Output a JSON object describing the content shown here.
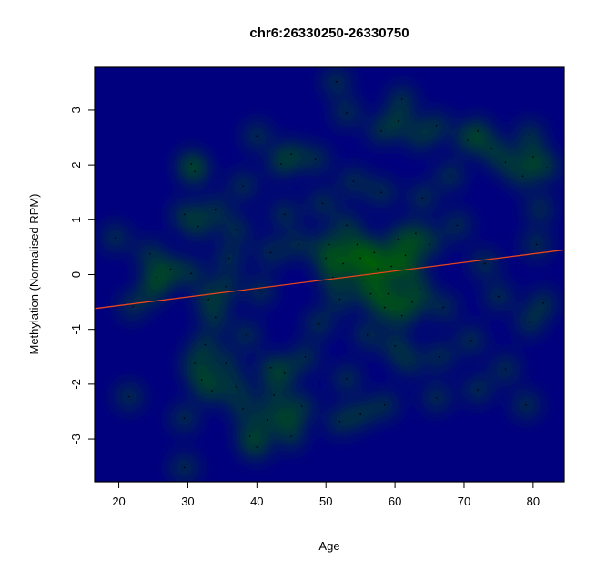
{
  "chart_data": {
    "type": "heatmap",
    "subtype": "smoothed-density-scatter",
    "title": "chr6:26330250-26330750",
    "xlabel": "Age",
    "ylabel": "Methylation (Normalised RPM)",
    "xlim": [
      16.5,
      84.5
    ],
    "ylim": [
      -3.78,
      3.78
    ],
    "x_ticks": [
      20,
      30,
      40,
      50,
      60,
      70,
      80
    ],
    "y_ticks": [
      -3,
      -2,
      -1,
      0,
      1,
      2,
      3
    ],
    "grid": false,
    "legend": "none",
    "colors": {
      "background": "#00007f",
      "regression_line": "#e8451c",
      "point": "#000000",
      "ramp": [
        "#00007f",
        "#006400",
        "#6fd000",
        "#ffff00",
        "#ffb000",
        "#ff6a00",
        "#ff0000",
        "#b00000"
      ]
    },
    "regression_line": {
      "x": [
        16.5,
        84.5
      ],
      "y": [
        -0.62,
        0.45
      ]
    },
    "points": [
      {
        "x": 19.5,
        "y": 0.67
      },
      {
        "x": 21.5,
        "y": -2.23
      },
      {
        "x": 29.5,
        "y": -2.62
      },
      {
        "x": 29.5,
        "y": -3.52
      },
      {
        "x": 30.5,
        "y": 2.02
      },
      {
        "x": 31.0,
        "y": 1.88
      },
      {
        "x": 29.5,
        "y": 1.1
      },
      {
        "x": 31.5,
        "y": 0.88
      },
      {
        "x": 34.0,
        "y": 1.18
      },
      {
        "x": 38.0,
        "y": 1.62
      },
      {
        "x": 40.0,
        "y": 2.53
      },
      {
        "x": 43.5,
        "y": 2.02
      },
      {
        "x": 51.5,
        "y": 3.52
      },
      {
        "x": 53.0,
        "y": 2.95
      },
      {
        "x": 61.0,
        "y": 3.2
      },
      {
        "x": 60.5,
        "y": 2.8
      },
      {
        "x": 66.0,
        "y": 2.72
      },
      {
        "x": 72.0,
        "y": 2.62
      },
      {
        "x": 79.5,
        "y": 2.55
      },
      {
        "x": 82.0,
        "y": 1.95
      },
      {
        "x": 80.0,
        "y": 2.15
      },
      {
        "x": 24.5,
        "y": 0.38
      },
      {
        "x": 25.5,
        "y": -0.05
      },
      {
        "x": 25.0,
        "y": -0.3
      },
      {
        "x": 27.5,
        "y": 0.1
      },
      {
        "x": 30.5,
        "y": 0.02
      },
      {
        "x": 33.0,
        "y": -0.45
      },
      {
        "x": 34.0,
        "y": -0.78
      },
      {
        "x": 32.5,
        "y": -1.28
      },
      {
        "x": 31.0,
        "y": -1.62
      },
      {
        "x": 32.0,
        "y": -1.92
      },
      {
        "x": 33.5,
        "y": -2.12
      },
      {
        "x": 35.5,
        "y": -1.62
      },
      {
        "x": 37.0,
        "y": -2.05
      },
      {
        "x": 38.0,
        "y": -2.45
      },
      {
        "x": 39.0,
        "y": -2.95
      },
      {
        "x": 40.0,
        "y": -3.15
      },
      {
        "x": 41.5,
        "y": -2.65
      },
      {
        "x": 42.5,
        "y": -2.2
      },
      {
        "x": 44.5,
        "y": -2.62
      },
      {
        "x": 45.0,
        "y": -2.95
      },
      {
        "x": 46.5,
        "y": -2.4
      },
      {
        "x": 42.0,
        "y": -1.7
      },
      {
        "x": 44.0,
        "y": -1.8
      },
      {
        "x": 52.0,
        "y": -2.68
      },
      {
        "x": 55.0,
        "y": -2.55
      },
      {
        "x": 58.5,
        "y": -2.38
      },
      {
        "x": 66.0,
        "y": -2.25
      },
      {
        "x": 72.0,
        "y": -2.1
      },
      {
        "x": 79.0,
        "y": -2.38
      },
      {
        "x": 76.0,
        "y": -1.72
      },
      {
        "x": 79.5,
        "y": -0.88
      },
      {
        "x": 81.5,
        "y": -0.52
      },
      {
        "x": 80.5,
        "y": 0.55
      },
      {
        "x": 81.0,
        "y": 1.2
      },
      {
        "x": 78.5,
        "y": 1.8
      },
      {
        "x": 76.0,
        "y": 2.05
      },
      {
        "x": 74.0,
        "y": 2.3
      },
      {
        "x": 70.5,
        "y": 2.45
      },
      {
        "x": 58.0,
        "y": 2.62
      },
      {
        "x": 63.5,
        "y": 2.5
      },
      {
        "x": 48.5,
        "y": 2.1
      },
      {
        "x": 45.0,
        "y": 2.2
      },
      {
        "x": 37.0,
        "y": 0.82
      },
      {
        "x": 22.0,
        "y": -0.58
      },
      {
        "x": 35.5,
        "y": -0.22
      },
      {
        "x": 46.0,
        "y": 0.55
      },
      {
        "x": 50.0,
        "y": 0.3
      },
      {
        "x": 53.0,
        "y": 0.9
      },
      {
        "x": 55.5,
        "y": -0.1
      },
      {
        "x": 57.0,
        "y": 0.4
      },
      {
        "x": 59.0,
        "y": -0.35
      },
      {
        "x": 60.5,
        "y": 0.65
      },
      {
        "x": 62.0,
        "y": 0.1
      },
      {
        "x": 63.5,
        "y": -0.25
      },
      {
        "x": 52.0,
        "y": -0.45
      },
      {
        "x": 49.0,
        "y": -0.9
      },
      {
        "x": 56.0,
        "y": -1.1
      },
      {
        "x": 61.0,
        "y": -0.75
      },
      {
        "x": 65.0,
        "y": 0.55
      },
      {
        "x": 67.0,
        "y": -0.6
      },
      {
        "x": 69.0,
        "y": 0.9
      },
      {
        "x": 71.0,
        "y": -1.2
      },
      {
        "x": 47.0,
        "y": -1.5
      },
      {
        "x": 44.0,
        "y": 1.1
      },
      {
        "x": 40.5,
        "y": -0.3
      },
      {
        "x": 42.0,
        "y": 0.4
      },
      {
        "x": 58.0,
        "y": 1.5
      },
      {
        "x": 54.0,
        "y": 1.7
      },
      {
        "x": 64.0,
        "y": 1.4
      },
      {
        "x": 68.0,
        "y": 1.8
      },
      {
        "x": 73.0,
        "y": 0.2
      },
      {
        "x": 75.0,
        "y": -0.4
      },
      {
        "x": 62.0,
        "y": -1.6
      },
      {
        "x": 53.0,
        "y": -1.9
      },
      {
        "x": 66.5,
        "y": -1.5
      },
      {
        "x": 38.5,
        "y": -1.1
      },
      {
        "x": 36.0,
        "y": 0.3
      },
      {
        "x": 49.5,
        "y": 1.3
      },
      {
        "x": 60.0,
        "y": -1.3
      },
      {
        "x": 57.5,
        "y": 0.1
      },
      {
        "x": 54.5,
        "y": 0.55
      },
      {
        "x": 51.0,
        "y": -0.05
      },
      {
        "x": 58.5,
        "y": -0.6
      },
      {
        "x": 61.5,
        "y": 0.35
      },
      {
        "x": 56.5,
        "y": -0.35
      },
      {
        "x": 52.5,
        "y": 0.2
      },
      {
        "x": 59.5,
        "y": 0.15
      },
      {
        "x": 63.0,
        "y": 0.75
      },
      {
        "x": 55.0,
        "y": 0.3
      },
      {
        "x": 50.5,
        "y": 0.55
      },
      {
        "x": 62.5,
        "y": -0.5
      }
    ]
  }
}
